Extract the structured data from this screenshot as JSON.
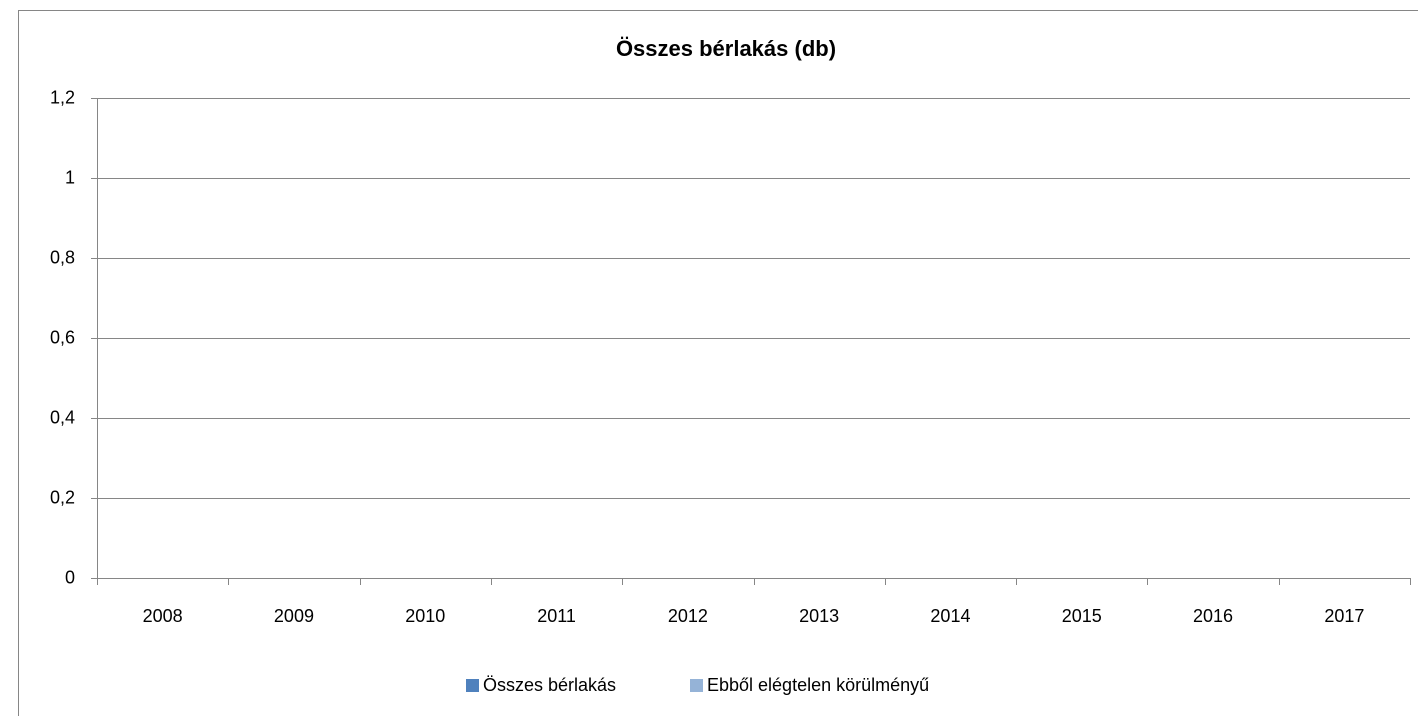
{
  "chart_data": {
    "type": "bar",
    "title": "Összes bérlakás (db)",
    "categories": [
      "2008",
      "2009",
      "2010",
      "2011",
      "2012",
      "2013",
      "2014",
      "2015",
      "2016",
      "2017"
    ],
    "series": [
      {
        "name": "Összes bérlakás",
        "color": "#4f81bd",
        "values": [
          0,
          0,
          0,
          0,
          0,
          0,
          0,
          0,
          0,
          0
        ]
      },
      {
        "name": "Ebből elégtelen körülményű",
        "color": "#95b3d7",
        "values": [
          0,
          0,
          0,
          0,
          0,
          0,
          0,
          0,
          0,
          0
        ]
      }
    ],
    "ylim": [
      0,
      1.2
    ],
    "yticks": [
      0,
      {
        "value": 0.2,
        "label": "0,2"
      },
      {
        "value": 0.4,
        "label": "0,4"
      },
      {
        "value": 0.6,
        "label": "0,6"
      },
      {
        "value": 0.8,
        "label": "0,8"
      },
      1,
      {
        "value": 1.2,
        "label": "1,2"
      }
    ],
    "grid": true,
    "legend": "bottom"
  }
}
